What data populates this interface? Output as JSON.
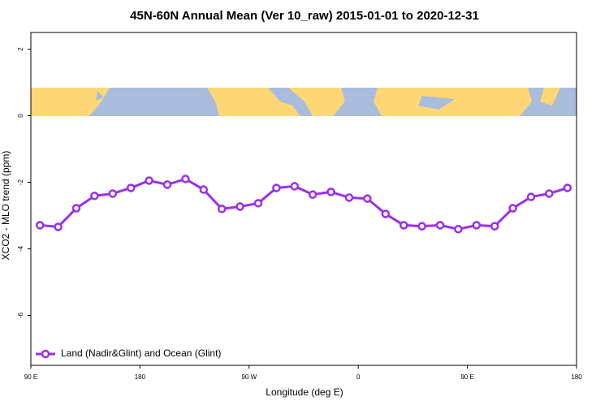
{
  "chart_data": {
    "type": "line",
    "title": "45N-60N Annual Mean (Ver 10_raw)   2015-01-01 to 2020-12-31",
    "x_label": "Longitude (deg E)",
    "y_label": "XCO2 - MLO trend (ppm)",
    "x": [
      97.5,
      112.5,
      127.5,
      142.5,
      157.5,
      172.5,
      187.5,
      202.5,
      217.5,
      232.5,
      247.5,
      262.5,
      277.5,
      292.5,
      307.5,
      322.5,
      337.5,
      352.5,
      367.5,
      382.5,
      397.5,
      412.5,
      427.5,
      442.5,
      457.5,
      472.5,
      487.5,
      502.5,
      517.5,
      532.5
    ],
    "series": [
      {
        "name": "Land (Nadir&Glint) and Ocean (Glint)",
        "color": "#9b30e8",
        "values": [
          -3.29,
          -3.34,
          -2.78,
          -2.41,
          -2.34,
          -2.17,
          -1.95,
          -2.07,
          -1.9,
          -2.22,
          -2.8,
          -2.73,
          -2.63,
          -2.17,
          -2.12,
          -2.37,
          -2.29,
          -2.46,
          -2.49,
          -2.95,
          -3.29,
          -3.32,
          -3.29,
          -3.41,
          -3.29,
          -3.32,
          -2.78,
          -2.44,
          -2.34,
          -2.17
        ]
      }
    ],
    "xlim": [
      90,
      540
    ],
    "xticks": [
      {
        "value": 90,
        "label": "90 E"
      },
      180,
      {
        "value": 270,
        "label": "90 W"
      },
      {
        "value": 360,
        "label": "0"
      },
      {
        "value": 450,
        "label": "90 E"
      },
      {
        "value": 540,
        "label": "180"
      }
    ],
    "ylim": [
      -7.5,
      2.5
    ],
    "yticks": [
      -6,
      -4,
      -2,
      0,
      2
    ],
    "legend": "bottomleft"
  }
}
